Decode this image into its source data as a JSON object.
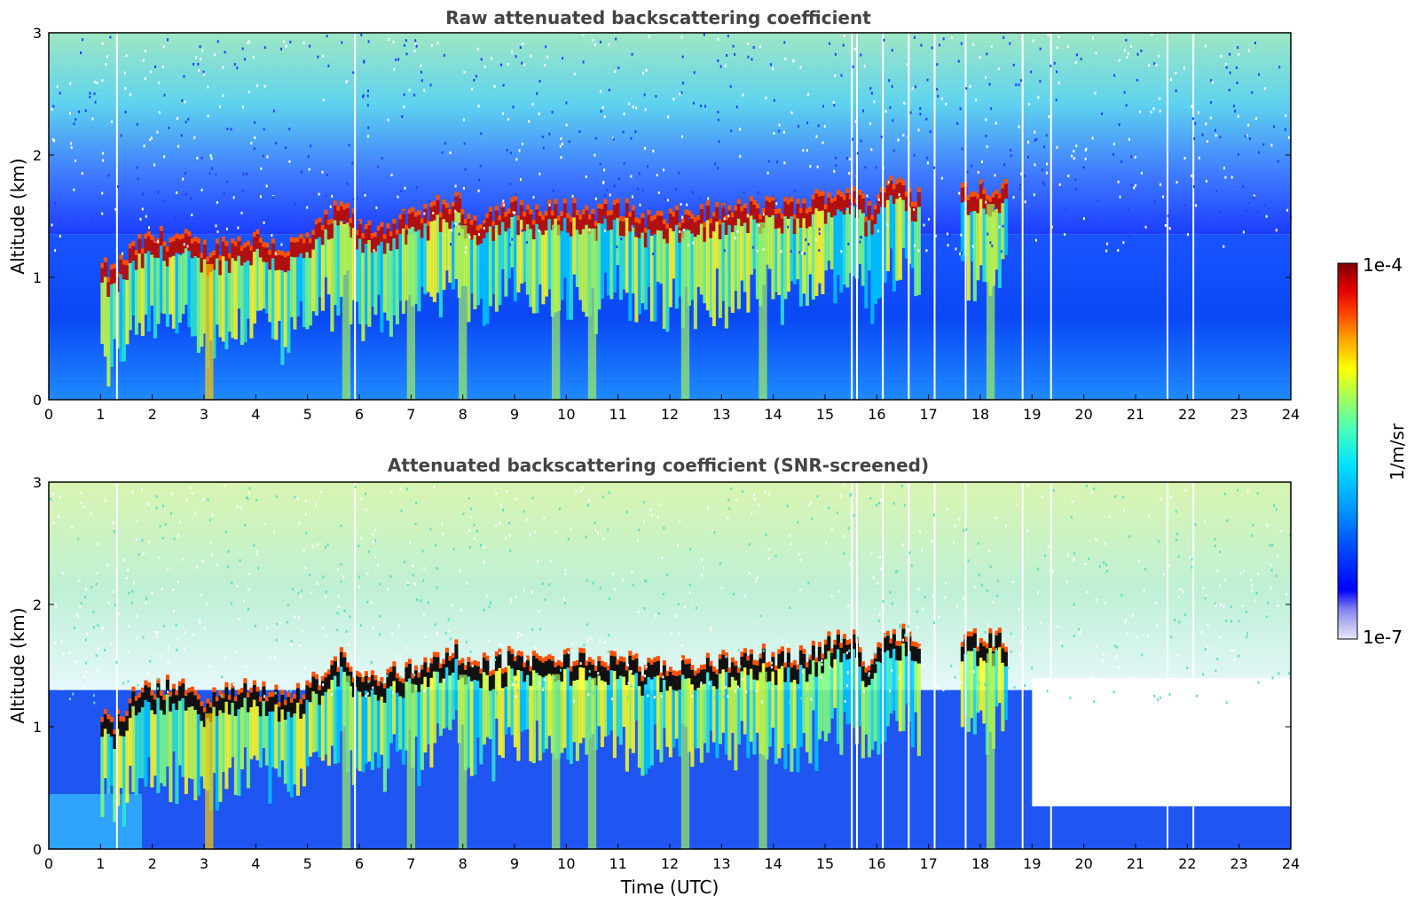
{
  "chart_data": [
    {
      "type": "heatmap",
      "title": "Raw attenuated backscattering coefficient",
      "ylabel": "Altitude (km)",
      "xlabel": "",
      "xlim": [
        0,
        24
      ],
      "ylim": [
        0,
        3
      ],
      "x_ticks": [
        0,
        1,
        2,
        3,
        4,
        5,
        6,
        7,
        8,
        9,
        10,
        11,
        12,
        13,
        14,
        15,
        16,
        17,
        18,
        19,
        20,
        21,
        22,
        23,
        24
      ],
      "y_ticks": [
        0,
        1,
        2,
        3
      ],
      "boundary_layer_top_km": [
        [
          1.0,
          1.05
        ],
        [
          1.2,
          1.0
        ],
        [
          1.6,
          1.2
        ],
        [
          2.0,
          1.3
        ],
        [
          2.5,
          1.3
        ],
        [
          3.0,
          1.2
        ],
        [
          3.5,
          1.25
        ],
        [
          4.0,
          1.3
        ],
        [
          4.5,
          1.2
        ],
        [
          5.0,
          1.3
        ],
        [
          5.5,
          1.5
        ],
        [
          5.7,
          1.55
        ],
        [
          6.0,
          1.35
        ],
        [
          6.5,
          1.4
        ],
        [
          7.0,
          1.45
        ],
        [
          7.5,
          1.55
        ],
        [
          7.8,
          1.6
        ],
        [
          8.2,
          1.45
        ],
        [
          8.5,
          1.5
        ],
        [
          9.0,
          1.55
        ],
        [
          9.5,
          1.5
        ],
        [
          10.0,
          1.55
        ],
        [
          10.5,
          1.5
        ],
        [
          11.0,
          1.55
        ],
        [
          11.5,
          1.45
        ],
        [
          12.0,
          1.45
        ],
        [
          12.5,
          1.5
        ],
        [
          13.0,
          1.5
        ],
        [
          13.5,
          1.55
        ],
        [
          14.0,
          1.55
        ],
        [
          14.5,
          1.55
        ],
        [
          15.0,
          1.65
        ],
        [
          15.5,
          1.7
        ],
        [
          15.8,
          1.5
        ],
        [
          16.2,
          1.75
        ],
        [
          16.5,
          1.75
        ],
        [
          16.7,
          1.65
        ],
        [
          17.6,
          1.7
        ],
        [
          18.0,
          1.7
        ],
        [
          18.5,
          1.7
        ]
      ]
    },
    {
      "type": "heatmap",
      "title": "Attenuated backscattering coefficient (SNR-screened)",
      "ylabel": "Altitude (km)",
      "xlabel": "Time (UTC)",
      "xlim": [
        0,
        24
      ],
      "ylim": [
        0,
        3
      ],
      "x_ticks": [
        0,
        1,
        2,
        3,
        4,
        5,
        6,
        7,
        8,
        9,
        10,
        11,
        12,
        13,
        14,
        15,
        16,
        17,
        18,
        19,
        20,
        21,
        22,
        23,
        24
      ],
      "y_ticks": [
        0,
        1,
        2,
        3
      ]
    }
  ],
  "colorbar": {
    "label": "1/m/sr",
    "max_label": "1e-4",
    "min_label": "1e-7",
    "colors": [
      "#e8e8f8",
      "#b8b8f0",
      "#8080f0",
      "#0000ff",
      "#0050ff",
      "#00a0ff",
      "#00e0ff",
      "#40ffc0",
      "#a0ff60",
      "#ffff00",
      "#ffa000",
      "#ff4000",
      "#e00000",
      "#800000"
    ]
  }
}
